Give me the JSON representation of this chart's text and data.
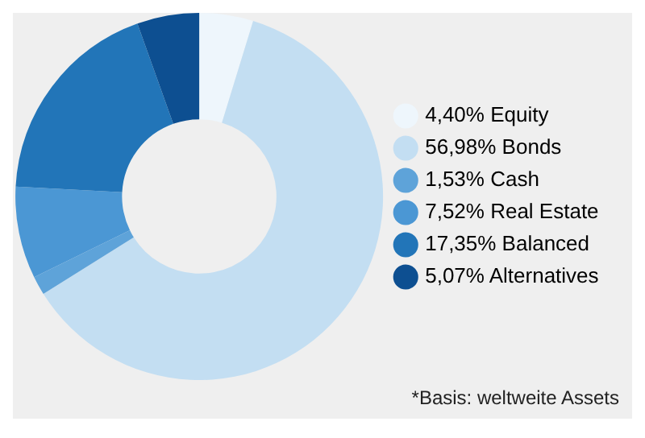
{
  "chart_data": {
    "type": "donut",
    "categories": [
      "Equity",
      "Bonds",
      "Cash",
      "Real Estate",
      "Balanced",
      "Alternatives"
    ],
    "values": [
      4.4,
      56.98,
      1.53,
      7.52,
      17.35,
      5.07
    ],
    "value_labels": [
      "4,40%",
      "56,98%",
      "1,53%",
      "7,52%",
      "17,35%",
      "5,07%"
    ],
    "colors": [
      "#eef6fc",
      "#c3def2",
      "#5ea3d9",
      "#4b97d4",
      "#2275b8",
      "#0d4f91"
    ],
    "legend": "right",
    "annotations": [
      "*Basis: weltweite Assets"
    ]
  }
}
